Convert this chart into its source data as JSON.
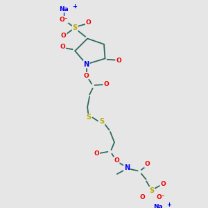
{
  "bg_color": "#e6e6e6",
  "bond_color": "#2d6b5e",
  "colors": {
    "Na": "#0000ee",
    "O": "#ee0000",
    "S": "#bbaa00",
    "N": "#0000ee",
    "C": "#2d6b5e"
  },
  "figsize": [
    3.0,
    3.0
  ],
  "dpi": 100,
  "xlim": [
    0,
    10
  ],
  "ylim": [
    0,
    10
  ]
}
